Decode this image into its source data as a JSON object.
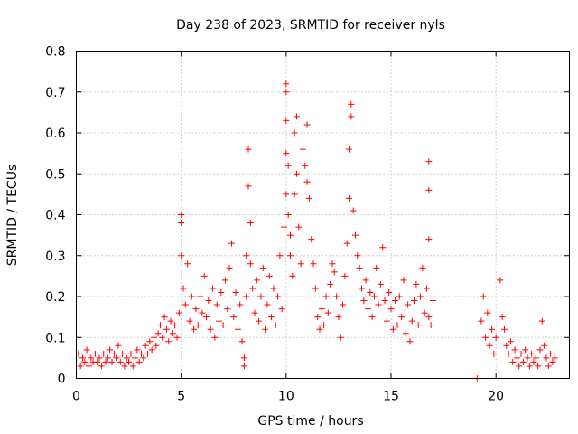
{
  "chart_data": {
    "type": "scatter",
    "title": "Day 238 of 2023, SRMTID for receiver nyls",
    "xlabel": "GPS time / hours",
    "ylabel": "SRMTID / TECUs",
    "xlim": [
      0,
      23.5
    ],
    "ylim": [
      0,
      0.8
    ],
    "xticks": [
      0,
      5,
      10,
      15,
      20
    ],
    "xtick_labels": [
      "0",
      "5",
      "10",
      "15",
      "20"
    ],
    "yticks": [
      0,
      0.1,
      0.2,
      0.3,
      0.4,
      0.5,
      0.6,
      0.7,
      0.8
    ],
    "ytick_labels": [
      "0",
      "0.1",
      "0.2",
      "0.3",
      "0.4",
      "0.5",
      "0.6",
      "0.7",
      "0.8"
    ],
    "grid": true,
    "marker": "plus",
    "color": "#ff0000",
    "series": [
      {
        "name": "nyls",
        "points": [
          [
            0.1,
            0.06
          ],
          [
            0.2,
            0.03
          ],
          [
            0.3,
            0.05
          ],
          [
            0.4,
            0.04
          ],
          [
            0.5,
            0.07
          ],
          [
            0.6,
            0.03
          ],
          [
            0.7,
            0.05
          ],
          [
            0.8,
            0.04
          ],
          [
            0.9,
            0.06
          ],
          [
            1.0,
            0.04
          ],
          [
            1.1,
            0.05
          ],
          [
            1.2,
            0.03
          ],
          [
            1.3,
            0.06
          ],
          [
            1.4,
            0.04
          ],
          [
            1.5,
            0.05
          ],
          [
            1.6,
            0.07
          ],
          [
            1.7,
            0.04
          ],
          [
            1.8,
            0.06
          ],
          [
            1.9,
            0.05
          ],
          [
            2.0,
            0.08
          ],
          [
            2.1,
            0.04
          ],
          [
            2.2,
            0.06
          ],
          [
            2.3,
            0.03
          ],
          [
            2.4,
            0.05
          ],
          [
            2.5,
            0.04
          ],
          [
            2.6,
            0.06
          ],
          [
            2.7,
            0.03
          ],
          [
            2.8,
            0.05
          ],
          [
            2.9,
            0.07
          ],
          [
            3.0,
            0.04
          ],
          [
            3.1,
            0.06
          ],
          [
            3.2,
            0.05
          ],
          [
            3.3,
            0.08
          ],
          [
            3.4,
            0.06
          ],
          [
            3.5,
            0.09
          ],
          [
            3.6,
            0.07
          ],
          [
            3.7,
            0.1
          ],
          [
            3.8,
            0.08
          ],
          [
            3.9,
            0.11
          ],
          [
            4.0,
            0.13
          ],
          [
            4.1,
            0.1
          ],
          [
            4.2,
            0.15
          ],
          [
            4.3,
            0.12
          ],
          [
            4.4,
            0.09
          ],
          [
            4.5,
            0.14
          ],
          [
            4.6,
            0.11
          ],
          [
            4.7,
            0.13
          ],
          [
            4.8,
            0.1
          ],
          [
            4.9,
            0.16
          ],
          [
            5.0,
            0.3
          ],
          [
            5.0,
            0.38
          ],
          [
            5.0,
            0.4
          ],
          [
            5.1,
            0.22
          ],
          [
            5.2,
            0.18
          ],
          [
            5.3,
            0.28
          ],
          [
            5.4,
            0.14
          ],
          [
            5.5,
            0.2
          ],
          [
            5.6,
            0.12
          ],
          [
            5.7,
            0.17
          ],
          [
            5.8,
            0.13
          ],
          [
            5.9,
            0.2
          ],
          [
            6.0,
            0.16
          ],
          [
            6.1,
            0.25
          ],
          [
            6.2,
            0.15
          ],
          [
            6.3,
            0.19
          ],
          [
            6.4,
            0.12
          ],
          [
            6.5,
            0.22
          ],
          [
            6.6,
            0.1
          ],
          [
            6.7,
            0.18
          ],
          [
            6.8,
            0.14
          ],
          [
            6.9,
            0.21
          ],
          [
            7.0,
            0.13
          ],
          [
            7.1,
            0.24
          ],
          [
            7.2,
            0.17
          ],
          [
            7.3,
            0.27
          ],
          [
            7.4,
            0.33
          ],
          [
            7.5,
            0.15
          ],
          [
            7.6,
            0.21
          ],
          [
            7.7,
            0.12
          ],
          [
            7.8,
            0.18
          ],
          [
            7.9,
            0.09
          ],
          [
            8.0,
            0.05
          ],
          [
            8.0,
            0.03
          ],
          [
            8.1,
            0.2
          ],
          [
            8.1,
            0.3
          ],
          [
            8.2,
            0.47
          ],
          [
            8.2,
            0.56
          ],
          [
            8.3,
            0.38
          ],
          [
            8.3,
            0.28
          ],
          [
            8.4,
            0.22
          ],
          [
            8.5,
            0.16
          ],
          [
            8.6,
            0.24
          ],
          [
            8.7,
            0.14
          ],
          [
            8.8,
            0.2
          ],
          [
            8.9,
            0.27
          ],
          [
            9.0,
            0.12
          ],
          [
            9.1,
            0.18
          ],
          [
            9.2,
            0.25
          ],
          [
            9.3,
            0.15
          ],
          [
            9.4,
            0.22
          ],
          [
            9.5,
            0.13
          ],
          [
            9.6,
            0.2
          ],
          [
            9.7,
            0.3
          ],
          [
            9.8,
            0.17
          ],
          [
            9.9,
            0.37
          ],
          [
            10.0,
            0.45
          ],
          [
            10.0,
            0.55
          ],
          [
            10.0,
            0.63
          ],
          [
            10.0,
            0.7
          ],
          [
            10.0,
            0.72
          ],
          [
            10.1,
            0.4
          ],
          [
            10.1,
            0.52
          ],
          [
            10.2,
            0.35
          ],
          [
            10.2,
            0.3
          ],
          [
            10.3,
            0.25
          ],
          [
            10.4,
            0.45
          ],
          [
            10.4,
            0.6
          ],
          [
            10.5,
            0.64
          ],
          [
            10.5,
            0.5
          ],
          [
            10.6,
            0.37
          ],
          [
            10.7,
            0.28
          ],
          [
            10.8,
            0.56
          ],
          [
            10.9,
            0.52
          ],
          [
            11.0,
            0.48
          ],
          [
            11.0,
            0.62
          ],
          [
            11.1,
            0.44
          ],
          [
            11.2,
            0.34
          ],
          [
            11.3,
            0.28
          ],
          [
            11.4,
            0.22
          ],
          [
            11.5,
            0.15
          ],
          [
            11.6,
            0.12
          ],
          [
            11.7,
            0.17
          ],
          [
            11.8,
            0.13
          ],
          [
            11.9,
            0.2
          ],
          [
            12.0,
            0.16
          ],
          [
            12.1,
            0.23
          ],
          [
            12.2,
            0.28
          ],
          [
            12.3,
            0.26
          ],
          [
            12.4,
            0.2
          ],
          [
            12.5,
            0.15
          ],
          [
            12.6,
            0.1
          ],
          [
            12.7,
            0.18
          ],
          [
            12.8,
            0.25
          ],
          [
            12.9,
            0.33
          ],
          [
            13.0,
            0.44
          ],
          [
            13.0,
            0.56
          ],
          [
            13.1,
            0.64
          ],
          [
            13.1,
            0.67
          ],
          [
            13.2,
            0.41
          ],
          [
            13.3,
            0.35
          ],
          [
            13.4,
            0.3
          ],
          [
            13.5,
            0.27
          ],
          [
            13.6,
            0.22
          ],
          [
            13.7,
            0.19
          ],
          [
            13.8,
            0.24
          ],
          [
            13.9,
            0.17
          ],
          [
            14.0,
            0.21
          ],
          [
            14.1,
            0.15
          ],
          [
            14.2,
            0.2
          ],
          [
            14.3,
            0.27
          ],
          [
            14.4,
            0.18
          ],
          [
            14.5,
            0.23
          ],
          [
            14.6,
            0.32
          ],
          [
            14.7,
            0.19
          ],
          [
            14.8,
            0.14
          ],
          [
            14.9,
            0.21
          ],
          [
            15.0,
            0.17
          ],
          [
            15.1,
            0.12
          ],
          [
            15.2,
            0.19
          ],
          [
            15.3,
            0.13
          ],
          [
            15.4,
            0.2
          ],
          [
            15.5,
            0.15
          ],
          [
            15.6,
            0.24
          ],
          [
            15.7,
            0.11
          ],
          [
            15.8,
            0.18
          ],
          [
            15.9,
            0.09
          ],
          [
            16.0,
            0.14
          ],
          [
            16.1,
            0.19
          ],
          [
            16.2,
            0.23
          ],
          [
            16.3,
            0.13
          ],
          [
            16.4,
            0.2
          ],
          [
            16.5,
            0.27
          ],
          [
            16.6,
            0.16
          ],
          [
            16.7,
            0.22
          ],
          [
            16.8,
            0.15
          ],
          [
            16.8,
            0.34
          ],
          [
            16.8,
            0.46
          ],
          [
            16.8,
            0.53
          ],
          [
            16.9,
            0.13
          ],
          [
            17.0,
            0.19
          ],
          [
            19.1,
            0.0
          ],
          [
            19.3,
            0.14
          ],
          [
            19.4,
            0.2
          ],
          [
            19.5,
            0.1
          ],
          [
            19.6,
            0.16
          ],
          [
            19.7,
            0.08
          ],
          [
            19.8,
            0.12
          ],
          [
            19.9,
            0.06
          ],
          [
            20.0,
            0.1
          ],
          [
            20.2,
            0.24
          ],
          [
            20.3,
            0.15
          ],
          [
            20.4,
            0.12
          ],
          [
            20.5,
            0.08
          ],
          [
            20.6,
            0.06
          ],
          [
            20.7,
            0.09
          ],
          [
            20.8,
            0.04
          ],
          [
            20.9,
            0.07
          ],
          [
            21.0,
            0.05
          ],
          [
            21.1,
            0.03
          ],
          [
            21.2,
            0.06
          ],
          [
            21.3,
            0.04
          ],
          [
            21.4,
            0.07
          ],
          [
            21.5,
            0.05
          ],
          [
            21.6,
            0.03
          ],
          [
            21.7,
            0.06
          ],
          [
            21.8,
            0.04
          ],
          [
            21.9,
            0.05
          ],
          [
            22.0,
            0.03
          ],
          [
            22.1,
            0.07
          ],
          [
            22.2,
            0.14
          ],
          [
            22.3,
            0.08
          ],
          [
            22.4,
            0.05
          ],
          [
            22.5,
            0.03
          ],
          [
            22.6,
            0.06
          ],
          [
            22.7,
            0.04
          ],
          [
            22.8,
            0.05
          ]
        ]
      }
    ]
  }
}
